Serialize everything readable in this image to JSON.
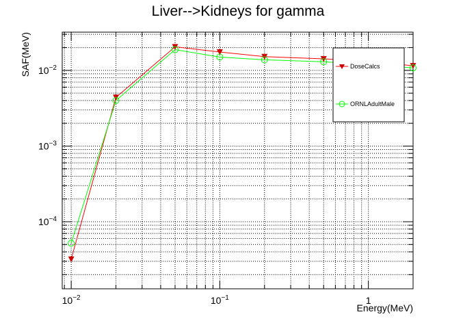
{
  "chart_data": {
    "type": "line",
    "title": "Liver-->Kidneys for gamma",
    "xlabel": "Energy(MeV)",
    "ylabel": "SAF(MeV)",
    "xscale": "log",
    "yscale": "log",
    "xlim": [
      0.0087,
      2.0
    ],
    "ylim": [
      1.3e-05,
      0.032
    ],
    "grid": true,
    "legend_position": "top-right",
    "x_ticks": [
      {
        "value": 0.01,
        "base": "10",
        "exp": "−2"
      },
      {
        "value": 0.1,
        "base": "10",
        "exp": "−1"
      },
      {
        "value": 1,
        "base": "1",
        "exp": ""
      }
    ],
    "y_ticks": [
      {
        "value": 0.0001,
        "base": "10",
        "exp": "−4"
      },
      {
        "value": 0.001,
        "base": "10",
        "exp": "−3"
      },
      {
        "value": 0.01,
        "base": "10",
        "exp": "−2"
      }
    ],
    "series": [
      {
        "name": "DoseCalcs",
        "color": "#ff0000",
        "marker_color": "#cc0000",
        "marker": "triangle-down",
        "x": [
          0.01,
          0.02,
          0.05,
          0.1,
          0.2,
          0.5,
          1.0,
          2.0
        ],
        "y": [
          3.2e-05,
          0.0044,
          0.0205,
          0.0175,
          0.0152,
          0.0142,
          0.0132,
          0.0115
        ]
      },
      {
        "name": "ORNLAdultMale",
        "color": "#00ff00",
        "marker_color": "#00ff00",
        "marker": "open-circle",
        "x": [
          0.01,
          0.02,
          0.05,
          0.1,
          0.2,
          0.5,
          1.0,
          2.0
        ],
        "y": [
          5.2e-05,
          0.004,
          0.0188,
          0.015,
          0.0138,
          0.013,
          0.012,
          0.0108
        ]
      }
    ]
  }
}
